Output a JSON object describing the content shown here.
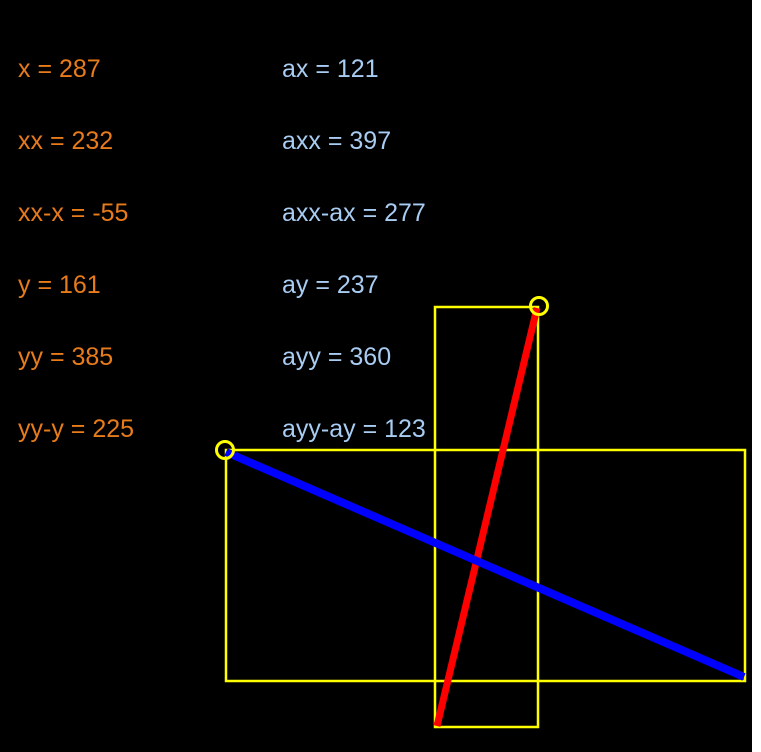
{
  "colors": {
    "background": "#000000",
    "orange_text": "#e87b1a",
    "blue_text": "#a8ccf2",
    "rect_stroke": "#ffff00",
    "handle_stroke": "#ffff00",
    "red_line": "#ff0000",
    "blue_line": "#0000ff"
  },
  "readout_left": [
    "x = 287",
    "xx = 232",
    "xx-x = -55",
    "y = 161",
    "yy = 385",
    "yy-y = 225"
  ],
  "readout_right": [
    "ax = 121",
    "axx = 397",
    "axx-ax = 277",
    "ay = 237",
    "ayy = 360",
    "ayy-ay = 123"
  ],
  "icons": {
    "handle_1": "circle-handle-icon",
    "handle_2": "circle-handle-icon"
  }
}
